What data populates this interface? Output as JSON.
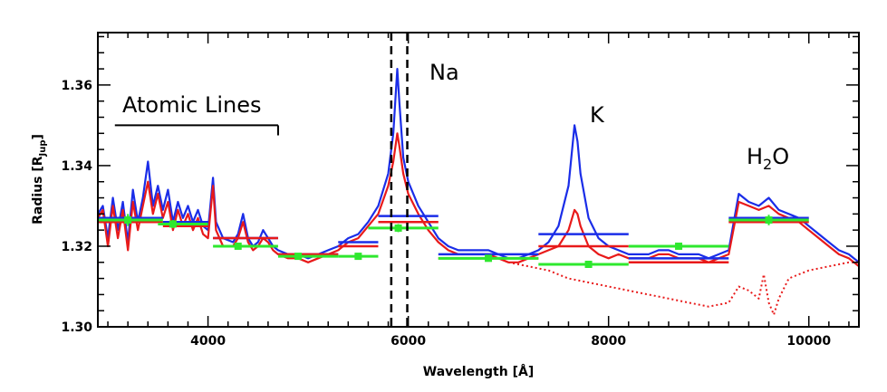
{
  "chart_data": {
    "type": "line",
    "title": "",
    "xlabel": "Wavelength [Å]",
    "ylabel_main": "Radius [R",
    "ylabel_sub": "Jup",
    "ylabel_end": "]",
    "xlim": [
      2900,
      10500
    ],
    "ylim": [
      1.3,
      1.373
    ],
    "x_ticks": [
      4000,
      6000,
      8000,
      10000
    ],
    "x_tick_labels": [
      "4000",
      "6000",
      "8000",
      "10000"
    ],
    "y_ticks": [
      1.3,
      1.32,
      1.34,
      1.36
    ],
    "y_tick_labels": [
      "1.30",
      "1.32",
      "1.34",
      "1.36"
    ],
    "grid": false,
    "colors": {
      "blue": "#1a2de8",
      "red": "#e81a1a",
      "green": "#2ee82e",
      "black": "#000000"
    },
    "annotations": {
      "atomic_lines": "Atomic Lines",
      "na": "Na",
      "k": "K",
      "h2o_main": "H",
      "h2o_sub": "2",
      "h2o_end": "O"
    },
    "atomic_lines_bracket": {
      "x_start": 3070,
      "x_end": 4700,
      "y": 1.35,
      "tick_end_y": 1.3475
    },
    "na_doublet_dashed_lines": [
      5830,
      5990
    ],
    "series": [
      {
        "color": "blue",
        "style": "solid",
        "points": [
          [
            2900,
            1.328
          ],
          [
            2950,
            1.33
          ],
          [
            3000,
            1.322
          ],
          [
            3050,
            1.332
          ],
          [
            3100,
            1.324
          ],
          [
            3150,
            1.331
          ],
          [
            3200,
            1.321
          ],
          [
            3250,
            1.334
          ],
          [
            3300,
            1.326
          ],
          [
            3350,
            1.332
          ],
          [
            3400,
            1.341
          ],
          [
            3450,
            1.33
          ],
          [
            3500,
            1.335
          ],
          [
            3550,
            1.329
          ],
          [
            3600,
            1.334
          ],
          [
            3650,
            1.326
          ],
          [
            3700,
            1.331
          ],
          [
            3750,
            1.327
          ],
          [
            3800,
            1.33
          ],
          [
            3850,
            1.326
          ],
          [
            3900,
            1.329
          ],
          [
            3950,
            1.325
          ],
          [
            4000,
            1.324
          ],
          [
            4050,
            1.337
          ],
          [
            4080,
            1.326
          ],
          [
            4150,
            1.322
          ],
          [
            4250,
            1.321
          ],
          [
            4300,
            1.323
          ],
          [
            4350,
            1.328
          ],
          [
            4400,
            1.322
          ],
          [
            4450,
            1.32
          ],
          [
            4500,
            1.321
          ],
          [
            4550,
            1.324
          ],
          [
            4600,
            1.322
          ],
          [
            4650,
            1.32
          ],
          [
            4700,
            1.319
          ],
          [
            4800,
            1.318
          ],
          [
            4900,
            1.318
          ],
          [
            5000,
            1.317
          ],
          [
            5100,
            1.318
          ],
          [
            5200,
            1.319
          ],
          [
            5300,
            1.32
          ],
          [
            5400,
            1.322
          ],
          [
            5500,
            1.323
          ],
          [
            5600,
            1.326
          ],
          [
            5700,
            1.33
          ],
          [
            5800,
            1.338
          ],
          [
            5850,
            1.348
          ],
          [
            5890,
            1.364
          ],
          [
            5910,
            1.356
          ],
          [
            5950,
            1.342
          ],
          [
            6000,
            1.336
          ],
          [
            6100,
            1.33
          ],
          [
            6200,
            1.326
          ],
          [
            6300,
            1.322
          ],
          [
            6400,
            1.32
          ],
          [
            6500,
            1.319
          ],
          [
            6600,
            1.319
          ],
          [
            6700,
            1.319
          ],
          [
            6800,
            1.319
          ],
          [
            6900,
            1.318
          ],
          [
            7000,
            1.317
          ],
          [
            7100,
            1.317
          ],
          [
            7200,
            1.318
          ],
          [
            7300,
            1.319
          ],
          [
            7400,
            1.321
          ],
          [
            7500,
            1.325
          ],
          [
            7600,
            1.335
          ],
          [
            7660,
            1.35
          ],
          [
            7690,
            1.346
          ],
          [
            7720,
            1.338
          ],
          [
            7800,
            1.327
          ],
          [
            7900,
            1.322
          ],
          [
            8000,
            1.32
          ],
          [
            8100,
            1.319
          ],
          [
            8200,
            1.318
          ],
          [
            8300,
            1.318
          ],
          [
            8400,
            1.318
          ],
          [
            8500,
            1.319
          ],
          [
            8600,
            1.319
          ],
          [
            8700,
            1.318
          ],
          [
            8800,
            1.318
          ],
          [
            8900,
            1.318
          ],
          [
            9000,
            1.317
          ],
          [
            9100,
            1.318
          ],
          [
            9200,
            1.319
          ],
          [
            9300,
            1.333
          ],
          [
            9400,
            1.331
          ],
          [
            9500,
            1.33
          ],
          [
            9600,
            1.332
          ],
          [
            9700,
            1.329
          ],
          [
            9800,
            1.328
          ],
          [
            9900,
            1.327
          ],
          [
            10000,
            1.325
          ],
          [
            10100,
            1.323
          ],
          [
            10200,
            1.321
          ],
          [
            10300,
            1.319
          ],
          [
            10400,
            1.318
          ],
          [
            10500,
            1.316
          ]
        ]
      },
      {
        "color": "red",
        "style": "solid",
        "points": [
          [
            2900,
            1.327
          ],
          [
            2950,
            1.329
          ],
          [
            3000,
            1.32
          ],
          [
            3050,
            1.33
          ],
          [
            3100,
            1.322
          ],
          [
            3150,
            1.329
          ],
          [
            3200,
            1.319
          ],
          [
            3250,
            1.331
          ],
          [
            3300,
            1.324
          ],
          [
            3350,
            1.33
          ],
          [
            3400,
            1.336
          ],
          [
            3450,
            1.328
          ],
          [
            3500,
            1.333
          ],
          [
            3550,
            1.327
          ],
          [
            3600,
            1.331
          ],
          [
            3650,
            1.324
          ],
          [
            3700,
            1.329
          ],
          [
            3750,
            1.325
          ],
          [
            3800,
            1.328
          ],
          [
            3850,
            1.324
          ],
          [
            3900,
            1.327
          ],
          [
            3950,
            1.323
          ],
          [
            4000,
            1.322
          ],
          [
            4050,
            1.335
          ],
          [
            4080,
            1.324
          ],
          [
            4150,
            1.32
          ],
          [
            4250,
            1.32
          ],
          [
            4300,
            1.322
          ],
          [
            4350,
            1.326
          ],
          [
            4400,
            1.321
          ],
          [
            4450,
            1.319
          ],
          [
            4500,
            1.32
          ],
          [
            4550,
            1.322
          ],
          [
            4600,
            1.321
          ],
          [
            4650,
            1.319
          ],
          [
            4700,
            1.318
          ],
          [
            4800,
            1.317
          ],
          [
            4900,
            1.317
          ],
          [
            5000,
            1.316
          ],
          [
            5100,
            1.317
          ],
          [
            5200,
            1.318
          ],
          [
            5300,
            1.319
          ],
          [
            5400,
            1.321
          ],
          [
            5500,
            1.322
          ],
          [
            5600,
            1.325
          ],
          [
            5700,
            1.328
          ],
          [
            5800,
            1.335
          ],
          [
            5850,
            1.341
          ],
          [
            5890,
            1.348
          ],
          [
            5910,
            1.345
          ],
          [
            5950,
            1.338
          ],
          [
            6000,
            1.333
          ],
          [
            6100,
            1.328
          ],
          [
            6200,
            1.324
          ],
          [
            6300,
            1.321
          ],
          [
            6400,
            1.319
          ],
          [
            6500,
            1.318
          ],
          [
            6600,
            1.318
          ],
          [
            6700,
            1.318
          ],
          [
            6800,
            1.318
          ],
          [
            6900,
            1.317
          ],
          [
            7000,
            1.316
          ],
          [
            7100,
            1.316
          ],
          [
            7200,
            1.317
          ],
          [
            7300,
            1.318
          ],
          [
            7400,
            1.319
          ],
          [
            7500,
            1.32
          ],
          [
            7600,
            1.324
          ],
          [
            7660,
            1.329
          ],
          [
            7690,
            1.328
          ],
          [
            7720,
            1.325
          ],
          [
            7800,
            1.32
          ],
          [
            7900,
            1.318
          ],
          [
            8000,
            1.317
          ],
          [
            8100,
            1.318
          ],
          [
            8200,
            1.317
          ],
          [
            8300,
            1.317
          ],
          [
            8400,
            1.317
          ],
          [
            8500,
            1.318
          ],
          [
            8600,
            1.318
          ],
          [
            8700,
            1.317
          ],
          [
            8800,
            1.317
          ],
          [
            8900,
            1.317
          ],
          [
            9000,
            1.316
          ],
          [
            9100,
            1.317
          ],
          [
            9200,
            1.318
          ],
          [
            9300,
            1.331
          ],
          [
            9400,
            1.33
          ],
          [
            9500,
            1.329
          ],
          [
            9600,
            1.33
          ],
          [
            9700,
            1.328
          ],
          [
            9800,
            1.327
          ],
          [
            9900,
            1.326
          ],
          [
            10000,
            1.324
          ],
          [
            10100,
            1.322
          ],
          [
            10200,
            1.32
          ],
          [
            10300,
            1.318
          ],
          [
            10400,
            1.317
          ],
          [
            10500,
            1.315
          ]
        ]
      },
      {
        "color": "red",
        "style": "dotted",
        "points": [
          [
            7000,
            1.316
          ],
          [
            7200,
            1.315
          ],
          [
            7400,
            1.314
          ],
          [
            7600,
            1.312
          ],
          [
            7800,
            1.311
          ],
          [
            8000,
            1.31
          ],
          [
            8200,
            1.309
          ],
          [
            8400,
            1.308
          ],
          [
            8600,
            1.307
          ],
          [
            8800,
            1.306
          ],
          [
            9000,
            1.305
          ],
          [
            9200,
            1.306
          ],
          [
            9300,
            1.31
          ],
          [
            9400,
            1.309
          ],
          [
            9500,
            1.307
          ],
          [
            9550,
            1.313
          ],
          [
            9600,
            1.306
          ],
          [
            9650,
            1.303
          ],
          [
            9700,
            1.307
          ],
          [
            9800,
            1.312
          ],
          [
            9900,
            1.313
          ],
          [
            10000,
            1.314
          ],
          [
            10200,
            1.315
          ],
          [
            10400,
            1.316
          ],
          [
            10500,
            1.316
          ]
        ]
      }
    ],
    "binned_bars": [
      {
        "color": "blue",
        "x0": 2900,
        "x1": 3550,
        "y": 1.327
      },
      {
        "color": "red",
        "x0": 2900,
        "x1": 3550,
        "y": 1.326
      },
      {
        "color": "blue",
        "x0": 3550,
        "x1": 4000,
        "y": 1.326
      },
      {
        "color": "red",
        "x0": 3550,
        "x1": 4000,
        "y": 1.325
      },
      {
        "color": "blue",
        "x0": 4050,
        "x1": 4700,
        "y": 1.322
      },
      {
        "color": "red",
        "x0": 4050,
        "x1": 4700,
        "y": 1.322
      },
      {
        "color": "blue",
        "x0": 4700,
        "x1": 5300,
        "y": 1.318
      },
      {
        "color": "red",
        "x0": 4700,
        "x1": 5300,
        "y": 1.318
      },
      {
        "color": "blue",
        "x0": 5300,
        "x1": 5700,
        "y": 1.321
      },
      {
        "color": "red",
        "x0": 5300,
        "x1": 5700,
        "y": 1.32
      },
      {
        "color": "blue",
        "x0": 5700,
        "x1": 6300,
        "y": 1.3275
      },
      {
        "color": "red",
        "x0": 5700,
        "x1": 6300,
        "y": 1.326
      },
      {
        "color": "blue",
        "x0": 6300,
        "x1": 7300,
        "y": 1.318
      },
      {
        "color": "red",
        "x0": 6300,
        "x1": 7300,
        "y": 1.317
      },
      {
        "color": "blue",
        "x0": 7300,
        "x1": 8200,
        "y": 1.323
      },
      {
        "color": "red",
        "x0": 7300,
        "x1": 8200,
        "y": 1.32
      },
      {
        "color": "blue",
        "x0": 8200,
        "x1": 9200,
        "y": 1.317
      },
      {
        "color": "red",
        "x0": 8200,
        "x1": 9200,
        "y": 1.316
      },
      {
        "color": "blue",
        "x0": 9200,
        "x1": 10000,
        "y": 1.327
      },
      {
        "color": "red",
        "x0": 9200,
        "x1": 10000,
        "y": 1.326
      }
    ],
    "data_points": [
      {
        "x": 3200,
        "y": 1.3265,
        "x0": 2900,
        "x1": 3550,
        "err": 0.0015
      },
      {
        "x": 3650,
        "y": 1.3255,
        "x0": 3500,
        "x1": 4000,
        "err": 0.001
      },
      {
        "x": 4300,
        "y": 1.32,
        "x0": 4050,
        "x1": 4700,
        "err": 0.0008
      },
      {
        "x": 4900,
        "y": 1.3175,
        "x0": 4700,
        "x1": 5300,
        "err": 0.0008
      },
      {
        "x": 5500,
        "y": 1.3175,
        "x0": 5300,
        "x1": 5700,
        "err": 0.0008
      },
      {
        "x": 5900,
        "y": 1.3245,
        "x0": 5600,
        "x1": 6300,
        "err": 0.001
      },
      {
        "x": 6800,
        "y": 1.317,
        "x0": 6300,
        "x1": 7300,
        "err": 0.0008
      },
      {
        "x": 7800,
        "y": 1.3155,
        "x0": 7300,
        "x1": 8200,
        "err": 0.0008
      },
      {
        "x": 8700,
        "y": 1.32,
        "x0": 8200,
        "x1": 9200,
        "err": 0.0008
      },
      {
        "x": 9600,
        "y": 1.3265,
        "x0": 9200,
        "x1": 10000,
        "err": 0.0013
      }
    ]
  }
}
